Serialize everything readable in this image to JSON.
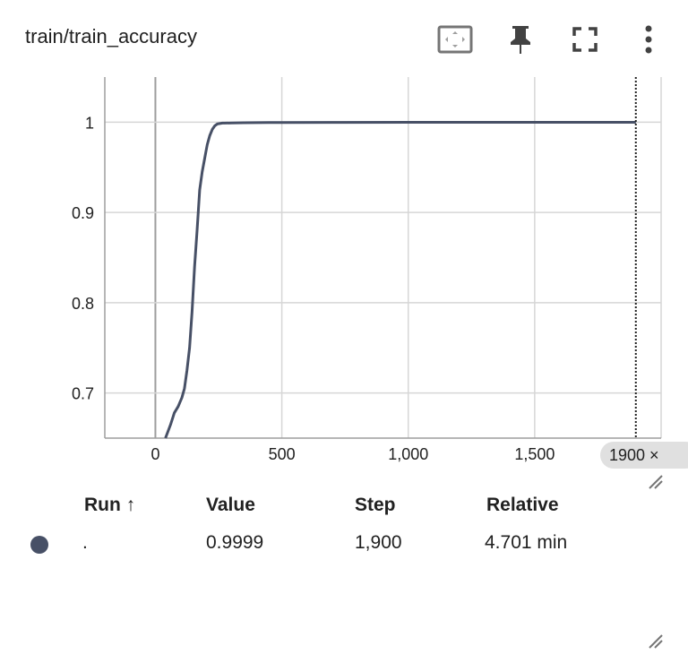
{
  "card": {
    "title": "train/train_accuracy"
  },
  "toolbar": {
    "icons": [
      "fit-domain-icon",
      "pin-icon",
      "fullscreen-icon",
      "more-vert-icon"
    ]
  },
  "colors": {
    "series": "#475066",
    "grid": "#d6d6d6",
    "axis": "#9e9e9e",
    "chip_bg": "#e0e0e0"
  },
  "chart_data": {
    "type": "line",
    "xlabel": "",
    "ylabel": "",
    "xlim": [
      -200,
      2000
    ],
    "ylim": [
      0.65,
      1.05
    ],
    "x_ticks": [
      0,
      500,
      1000,
      1500
    ],
    "x_tick_labels": [
      "0",
      "500",
      "1,000",
      "1,500"
    ],
    "y_ticks": [
      0.7,
      0.8,
      0.9,
      1.0
    ],
    "y_tick_labels": [
      "0.7",
      "0.8",
      "0.9",
      "1"
    ],
    "grid": true,
    "cursor_step": 1900,
    "cursor_label": "1900",
    "series": [
      {
        "color": "#475066",
        "x": [
          40,
          60,
          75,
          90,
          105,
          115,
          125,
          135,
          145,
          155,
          165,
          175,
          185,
          195,
          205,
          215,
          225,
          235,
          245,
          255,
          265,
          275,
          300,
          350,
          400,
          450,
          500,
          700,
          1000,
          1300,
          1600,
          1900
        ],
        "y": [
          0.65,
          0.665,
          0.678,
          0.685,
          0.695,
          0.705,
          0.725,
          0.75,
          0.79,
          0.84,
          0.88,
          0.925,
          0.945,
          0.96,
          0.975,
          0.985,
          0.992,
          0.996,
          0.998,
          0.9985,
          0.999,
          0.999,
          0.9992,
          0.9994,
          0.9995,
          0.9996,
          0.9997,
          0.9998,
          0.9999,
          0.9999,
          0.9999,
          0.9999
        ]
      }
    ]
  },
  "step_chip": {
    "label": "1900 ×"
  },
  "table": {
    "headers": {
      "run": "Run ↑",
      "value": "Value",
      "step": "Step",
      "relative": "Relative"
    },
    "rows": [
      {
        "run": ".",
        "value": "0.9999",
        "step": "1,900",
        "relative": "4.701 min",
        "color": "#475066"
      }
    ]
  }
}
